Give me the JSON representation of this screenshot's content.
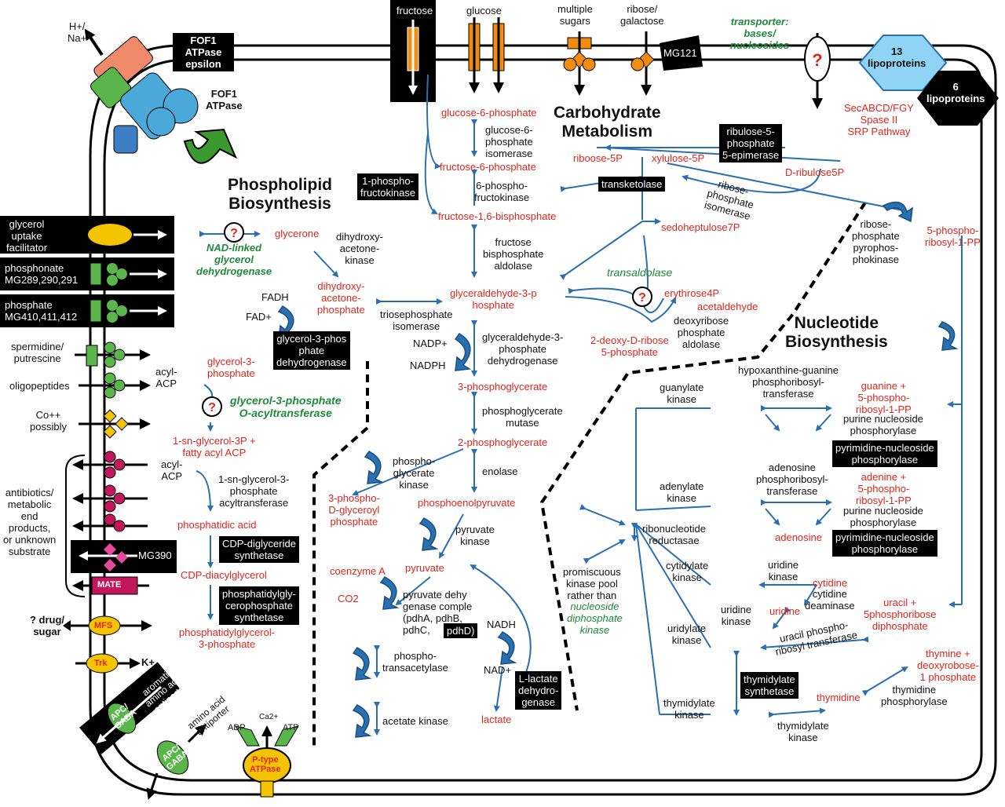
{
  "sections": {
    "carbohydrate": "Carbohydrate\nMetabolism",
    "phospholipid": "Phospholipid\nBiosynthesis",
    "nucleotide": "Nucleotide\nBiosynthesis"
  },
  "membrane": {
    "ion": "H+/\nNa+",
    "fof1_epsilon": "FOF1\nATPase\nepsilon",
    "fof1": "FOF1\nATPase",
    "sugars": [
      "fructose",
      "glucose",
      "multiple\nsugars",
      "ribose/\ngalactose"
    ],
    "mg121": "MG121",
    "transporter_bases": "transporter:\nbases/\nnucleosides",
    "lipo13": "13\nlipoproteins",
    "lipo6": "6\nlipoproteins",
    "secretion": "SecABCD/FGY\nSpase II\nSRP Pathway",
    "left": {
      "glycerol": "glycerol\nuptake\nfacilitator",
      "phosphonate": "phosphonate\nMG289,290,291",
      "phosphate": "phosphate\nMG410,411,412",
      "spermidine": "spermidine/\nputrescine",
      "oligopeptides": "oligopeptides",
      "cobalt": "Co++\npossibly",
      "antibiotics": "antibiotics/\nmetabolic\nend\nproducts,\nor unknown\nsubstrate",
      "mg390": "MG390",
      "mate": "MATE",
      "drug": "? drug/\nsugar",
      "mfs": "MFS",
      "trk": "Trk",
      "k": "K+",
      "apc1": "APC/\nGABA",
      "aromatic": "aromatic\namino acid\nantiporter",
      "apc2": "APC/\nGABA",
      "aa_antiporter": "amino acid\nantiporter",
      "adp": "ADP",
      "ca": "Ca2+",
      "atp": "ATP",
      "ptype": "P-type\nATPase"
    }
  },
  "glycolysis": {
    "g6p": "glucose-6-phosphate",
    "g6p_iso": "glucose-6-\nphosphate\nisomerase",
    "f6p": "fructose-6-phosphate",
    "pfk": "6-phospho-\nfructokinase",
    "f16bp": "fructose-1,6-bisphosphate",
    "phosphofructokinase": "1-phospho-\nfructokinase",
    "fba": "fructose\nbisphosphate\naldolase",
    "g3p": "glyceraldehyde-3-p\nhosphate",
    "gapdh": "glyceraldehyde-3-\nphosphate\ndehydrogenase",
    "nadp": "NADP+",
    "nadph": "NADPH",
    "pg3": "3-phosphoglycerate",
    "pgm": "phosphoglycerate\nmutase",
    "pg2": "2-phosphoglycerate",
    "enolase": "enolase",
    "pep": "phosphoenolpyruvate",
    "pgk": "phospho-\nglycerate\nkinase",
    "bpg": "3-phospho-\nD-glyceroyl\nphosphate",
    "pk": "pyruvate\nkinase",
    "pyruvate": "pyruvate",
    "coa": "coenzyme A",
    "co2": "CO2",
    "pdh": "pyruvate dehy\ngenase comple\n(pdhA, pdhB,\npdhC,",
    "pdhd": "pdhD)",
    "nadh": "NADH",
    "nad": "NAD+",
    "ldh": "L-lactate\ndehydro-\ngenase",
    "lactate": "lactate",
    "pta": "phospho-\ntransacetylase",
    "ack": "acetate kinase",
    "tpi": "triosephosphate\nisomerase"
  },
  "ppp": {
    "rpe": "ribulose-5-\nphosphate\n5-epimerase",
    "ribose5p": "riboose-5P",
    "xylulose5p": "xylulose-5P",
    "ribulose5p": "D-ribulose5P",
    "transketolase": "transketolase",
    "rpi": "ribose-\nphosphate\nisomerase",
    "sedo": "sedoheptulose7P",
    "transaldolase": "transaldolase",
    "e4p": "erythrose4P",
    "acetaldehyde": "acetaldehyde",
    "deoxyribose": "2-deoxy-D-ribose\n5-phosphate",
    "dra": "deoxyribose\nphosphate\naldolase",
    "prpp_kinase": "ribose-\nphosphate\npyrophos-\nphokinase",
    "prpp": "5-phospho-\nribosyl-1-PP"
  },
  "lipid": {
    "nad_glycerol": "NAD-linked\nglycerol\ndehydrogenase",
    "glycerone": "glycerone",
    "dhak": "dihydroxy-\nacetone-\nkinase",
    "dhap": "dihydroxy-\nacetone-\nphosphate",
    "fadh": "FADH",
    "fad": "FAD+",
    "g3pdh": "glycerol-3-phos\nphate\ndehydrogenase",
    "glycerol3p": "glycerol-3-\nphosphate",
    "acyl_acp": "acyl-\nACP",
    "g3p_acyl": "glycerol-3-phosphate\nO-acyltransferase",
    "lyso": "1-sn-glycerol-3P +\nfatty acyl ACP",
    "acyl_acp2": "acyl-\nACP",
    "plsc": "1-sn-glycerol-3-\nphosphate\nacyltransferase",
    "pa": "phosphatidic acid",
    "cds": "CDP-diglyceride\nsynthetase",
    "cdpdag": "CDP-diacylglycerol",
    "pgs": "phosphatidylgly-\ncerophosphate\nsynthetase",
    "pgp": "phosphatidylglycerol-\n3-phosphate"
  },
  "nucleotide": {
    "guanylate": "guanylate\nkinase",
    "hgprt": "hypoxanthine-guanine\nphosphoribosyl-\ntransferase",
    "guanine": "guanine +\n5-phospho-\nribosyl-1-PP",
    "pnp1": "purine nucleoside\nphosphorylase",
    "pyrnp1": "pyrimidine-nucleoside\nphosphorylase",
    "adenylate": "adenylate\nkinase",
    "aprt": "adenosine\nphosphoribosyl-\ntransferase",
    "adenine": "adenine +\n5-phospho-\nribosyl-1-PP",
    "pnp2": "purine nucleoside\nphosphorylase",
    "adenosine": "adenosine",
    "pyrnp2": "pyrimidine-nucleoside\nphosphorylase",
    "rnr": "ribonucleotide\nreductasae",
    "promiscuous": "promiscuous\nkinase pool\nrather than",
    "ndk": "nucleoside\ndiphosphate\nkinase",
    "cytidylate": "cytidylate\nkinase",
    "uridine_kinase": "uridine\nkinase",
    "cytidine": "cytidine",
    "cytidine_deaminase": "cytidine\ndeaminase",
    "uridine_kinase2": "uridine\nkinase",
    "uridine": "uridine",
    "uracil": "uracil +\n5phosphoribose\ndiphosphate",
    "uridylate": "uridylate\nkinase",
    "uprt": "uracil phospho-\nribosyl transferase",
    "ts": "thymidylate\nsynthetase",
    "thymine": "thymine +\ndeoxyrobose-\n1 phosphate",
    "thymidine": "thymidine",
    "tp": "thymidine\nphosphorylase",
    "thymidylate": "thymidylate\nkinase",
    "thymidylate2": "thymidylate\nkinase"
  },
  "colors": {
    "red": "#e0251b",
    "green": "#1e8a3a",
    "blue": "#2a6fb0",
    "orange": "#f28c0f",
    "cyan": "#6ec6ee"
  }
}
